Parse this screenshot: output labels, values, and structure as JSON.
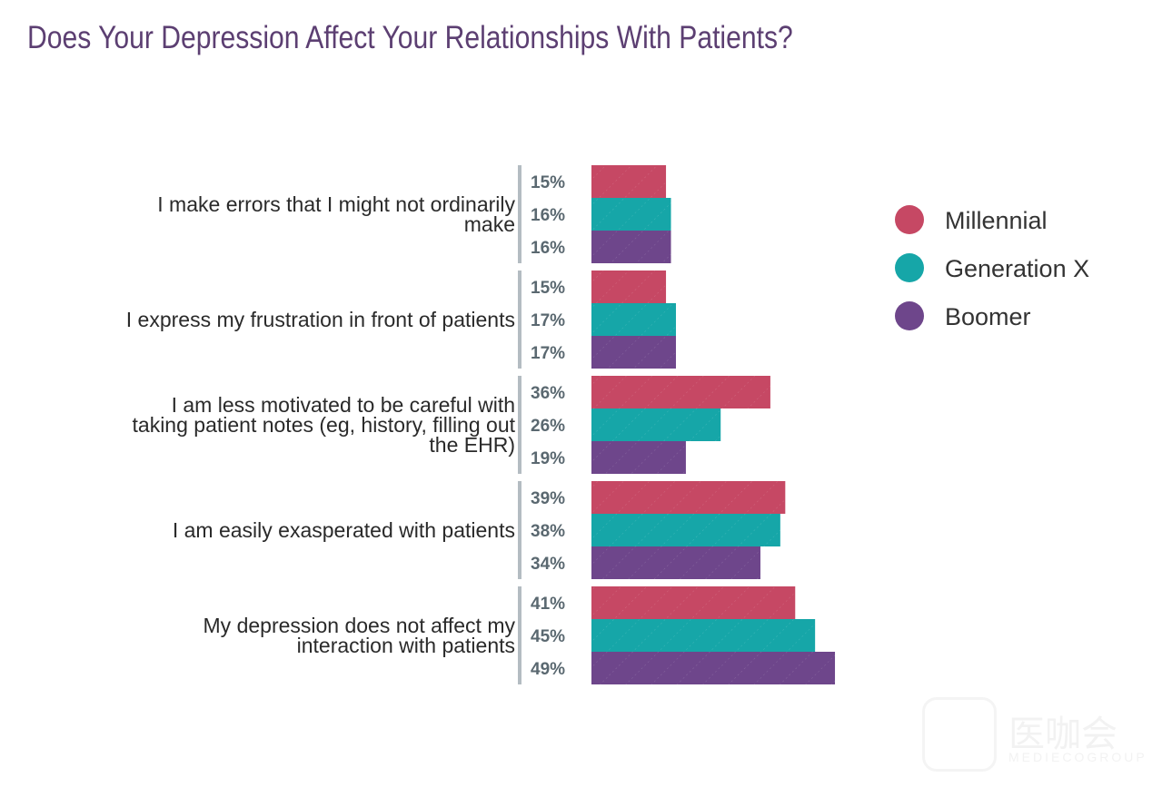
{
  "chart_data": {
    "type": "bar",
    "orientation": "horizontal",
    "title": "Does Your Depression Affect Your Relationships With Patients?",
    "categories": [
      [
        "I make errors that I might not ordinarily",
        "make"
      ],
      [
        "I express my frustration in front of patients"
      ],
      [
        "I am less motivated to be careful with",
        "taking patient notes (eg, history, filling out",
        "the EHR)"
      ],
      [
        "I am easily exasperated with patients"
      ],
      [
        "My depression does not affect my",
        "interaction with patients"
      ]
    ],
    "series": [
      {
        "name": "Millennial",
        "color": "#c64864",
        "values": [
          15,
          15,
          36,
          39,
          41
        ]
      },
      {
        "name": "Generation X",
        "color": "#16a6a8",
        "values": [
          16,
          17,
          26,
          38,
          45
        ]
      },
      {
        "name": "Boomer",
        "color": "#6e468b",
        "values": [
          16,
          17,
          19,
          34,
          49
        ]
      }
    ],
    "value_suffix": "%",
    "xlim": [
      0,
      100
    ],
    "legend_position": "right",
    "grid": false
  },
  "watermark": {
    "cn": "医咖会",
    "en": "MEDIECOGROUP"
  }
}
